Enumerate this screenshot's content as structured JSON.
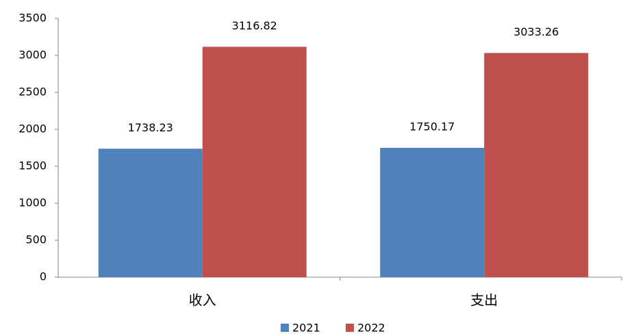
{
  "chart_data": {
    "type": "bar",
    "categories": [
      "收入",
      "支出"
    ],
    "series": [
      {
        "name": "2021",
        "color": "#4f81bd",
        "values": [
          1738.23,
          1750.17
        ]
      },
      {
        "name": "2022",
        "color": "#c0504d",
        "values": [
          3116.82,
          3033.26
        ]
      }
    ],
    "ylim": [
      0,
      3500
    ],
    "yticks": [
      0,
      500,
      1000,
      1500,
      2000,
      2500,
      3000,
      3500
    ],
    "grid": false,
    "legend": "bottom"
  }
}
